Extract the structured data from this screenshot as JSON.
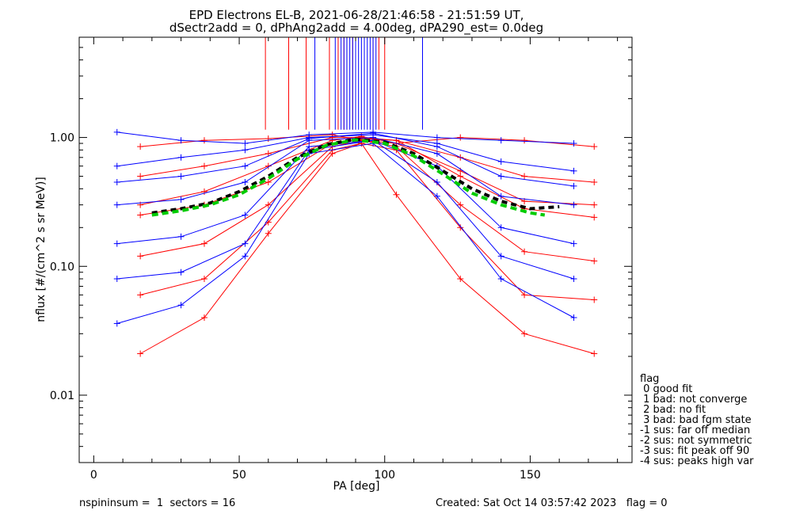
{
  "title_line1": "EPD Electrons EL-B, 2021-06-28/21:46:58 - 21:51:59 UT,",
  "title_line2": "dSectr2add = 0, dPhAng2add = 4.00deg, dPA290_est=    0.0deg",
  "footer_left": "nspininsum =  1  sectors = 16",
  "footer_right": "Created: Sat Oct 14 03:57:42 2023   flag = 0",
  "legend": {
    "title": "flag",
    "items": [
      " 0 good fit",
      " 1 bad: not converge",
      " 2 bad: no fit",
      " 3 bad: bad fgm state",
      "-1 sus: far off median",
      "-2 sus: not symmetric",
      "-3 sus: fit peak off 90",
      "-4 sus: peaks high var"
    ]
  },
  "colors": {
    "red_series": "#ff0000",
    "blue_series": "#0000ff",
    "median_fit": "#000000",
    "model_fit": "#00cc00"
  },
  "chart_data": {
    "type": "line",
    "xlabel": "PA [deg]",
    "ylabel": "nflux [#/(cm^2 s sr MeV)]",
    "xlim": [
      -5,
      185
    ],
    "ylim": [
      0.003,
      6.0
    ],
    "yscale": "log",
    "x_ticks": [
      0,
      50,
      100,
      150
    ],
    "y_ticks": [
      0.01,
      0.1,
      1.0
    ],
    "y_tick_labels": [
      "0.01",
      "0.10",
      "1.00"
    ],
    "grid": false,
    "series": [
      {
        "color": "red",
        "x": [
          16,
          38,
          60,
          82,
          92,
          104,
          126,
          148,
          172
        ],
        "values": [
          0.85,
          0.95,
          0.98,
          1.05,
          0.95,
          0.9,
          1.0,
          0.95,
          0.85
        ]
      },
      {
        "color": "red",
        "x": [
          16,
          38,
          60,
          82,
          92,
          104,
          126,
          148,
          172
        ],
        "values": [
          0.5,
          0.6,
          0.75,
          1.0,
          1.0,
          0.95,
          0.7,
          0.5,
          0.45
        ]
      },
      {
        "color": "red",
        "x": [
          16,
          38,
          60,
          82,
          92,
          104,
          126,
          148,
          172
        ],
        "values": [
          0.25,
          0.3,
          0.45,
          0.9,
          0.98,
          0.95,
          0.5,
          0.28,
          0.24
        ]
      },
      {
        "color": "red",
        "x": [
          16,
          38,
          60,
          82,
          92,
          104,
          126,
          148,
          172
        ],
        "values": [
          0.12,
          0.15,
          0.3,
          0.85,
          0.95,
          0.85,
          0.3,
          0.13,
          0.11
        ]
      },
      {
        "color": "red",
        "x": [
          16,
          38,
          60,
          82,
          92,
          104,
          126,
          148,
          172
        ],
        "values": [
          0.06,
          0.08,
          0.22,
          0.8,
          0.9,
          0.8,
          0.2,
          0.06,
          0.055
        ]
      },
      {
        "color": "red",
        "x": [
          16,
          38,
          60,
          82,
          92,
          104,
          126,
          148,
          172
        ],
        "values": [
          0.021,
          0.04,
          0.18,
          0.75,
          0.9,
          0.36,
          0.08,
          0.03,
          0.021
        ]
      },
      {
        "color": "red",
        "x": [
          16,
          38,
          60,
          82,
          92,
          104,
          126,
          148,
          172
        ],
        "values": [
          0.3,
          0.38,
          0.6,
          0.95,
          1.02,
          0.9,
          0.55,
          0.32,
          0.3
        ]
      },
      {
        "color": "blue",
        "x": [
          8,
          30,
          52,
          74,
          96,
          118,
          140,
          165
        ],
        "values": [
          1.1,
          0.95,
          0.9,
          1.05,
          1.1,
          1.0,
          0.95,
          0.9
        ]
      },
      {
        "color": "blue",
        "x": [
          8,
          30,
          52,
          74,
          96,
          118,
          140,
          165
        ],
        "values": [
          0.6,
          0.7,
          0.8,
          1.0,
          1.05,
          0.9,
          0.65,
          0.55
        ]
      },
      {
        "color": "blue",
        "x": [
          8,
          30,
          52,
          74,
          96,
          118,
          140,
          165
        ],
        "values": [
          0.3,
          0.33,
          0.45,
          0.95,
          1.0,
          0.75,
          0.35,
          0.3
        ]
      },
      {
        "color": "blue",
        "x": [
          8,
          30,
          52,
          74,
          96,
          118,
          140,
          165
        ],
        "values": [
          0.15,
          0.17,
          0.25,
          0.85,
          0.95,
          0.6,
          0.2,
          0.15
        ]
      },
      {
        "color": "blue",
        "x": [
          8,
          30,
          52,
          74,
          96,
          118,
          140,
          165
        ],
        "values": [
          0.08,
          0.09,
          0.15,
          0.8,
          0.95,
          0.45,
          0.12,
          0.08
        ]
      },
      {
        "color": "blue",
        "x": [
          8,
          30,
          52,
          74,
          96,
          118,
          140,
          165
        ],
        "values": [
          0.036,
          0.05,
          0.12,
          0.75,
          0.9,
          0.35,
          0.08,
          0.04
        ]
      },
      {
        "color": "blue",
        "x": [
          8,
          30,
          52,
          74,
          96,
          118,
          140,
          165
        ],
        "values": [
          0.45,
          0.5,
          0.6,
          0.98,
          1.08,
          0.85,
          0.5,
          0.42
        ]
      },
      {
        "color": "median_fit",
        "x": [
          20,
          30,
          40,
          50,
          60,
          70,
          80,
          90,
          100,
          110,
          120,
          130,
          140,
          150,
          160
        ],
        "values": [
          0.26,
          0.28,
          0.31,
          0.38,
          0.5,
          0.7,
          0.88,
          0.97,
          0.92,
          0.75,
          0.55,
          0.4,
          0.32,
          0.28,
          0.29
        ]
      },
      {
        "color": "model_fit",
        "x": [
          20,
          30,
          40,
          50,
          60,
          70,
          80,
          90,
          100,
          110,
          120,
          130,
          140,
          150,
          155
        ],
        "values": [
          0.25,
          0.27,
          0.3,
          0.36,
          0.48,
          0.68,
          0.87,
          0.96,
          0.9,
          0.72,
          0.52,
          0.37,
          0.3,
          0.26,
          0.25
        ]
      }
    ],
    "spikes": [
      {
        "color": "red",
        "x": [
          59,
          67,
          73,
          81,
          84,
          86,
          87,
          89,
          96,
          98,
          100
        ]
      },
      {
        "color": "blue",
        "x": [
          76,
          83,
          85,
          86,
          87,
          88,
          89,
          90,
          91,
          92,
          93,
          94,
          95,
          96,
          97,
          113
        ]
      }
    ]
  }
}
